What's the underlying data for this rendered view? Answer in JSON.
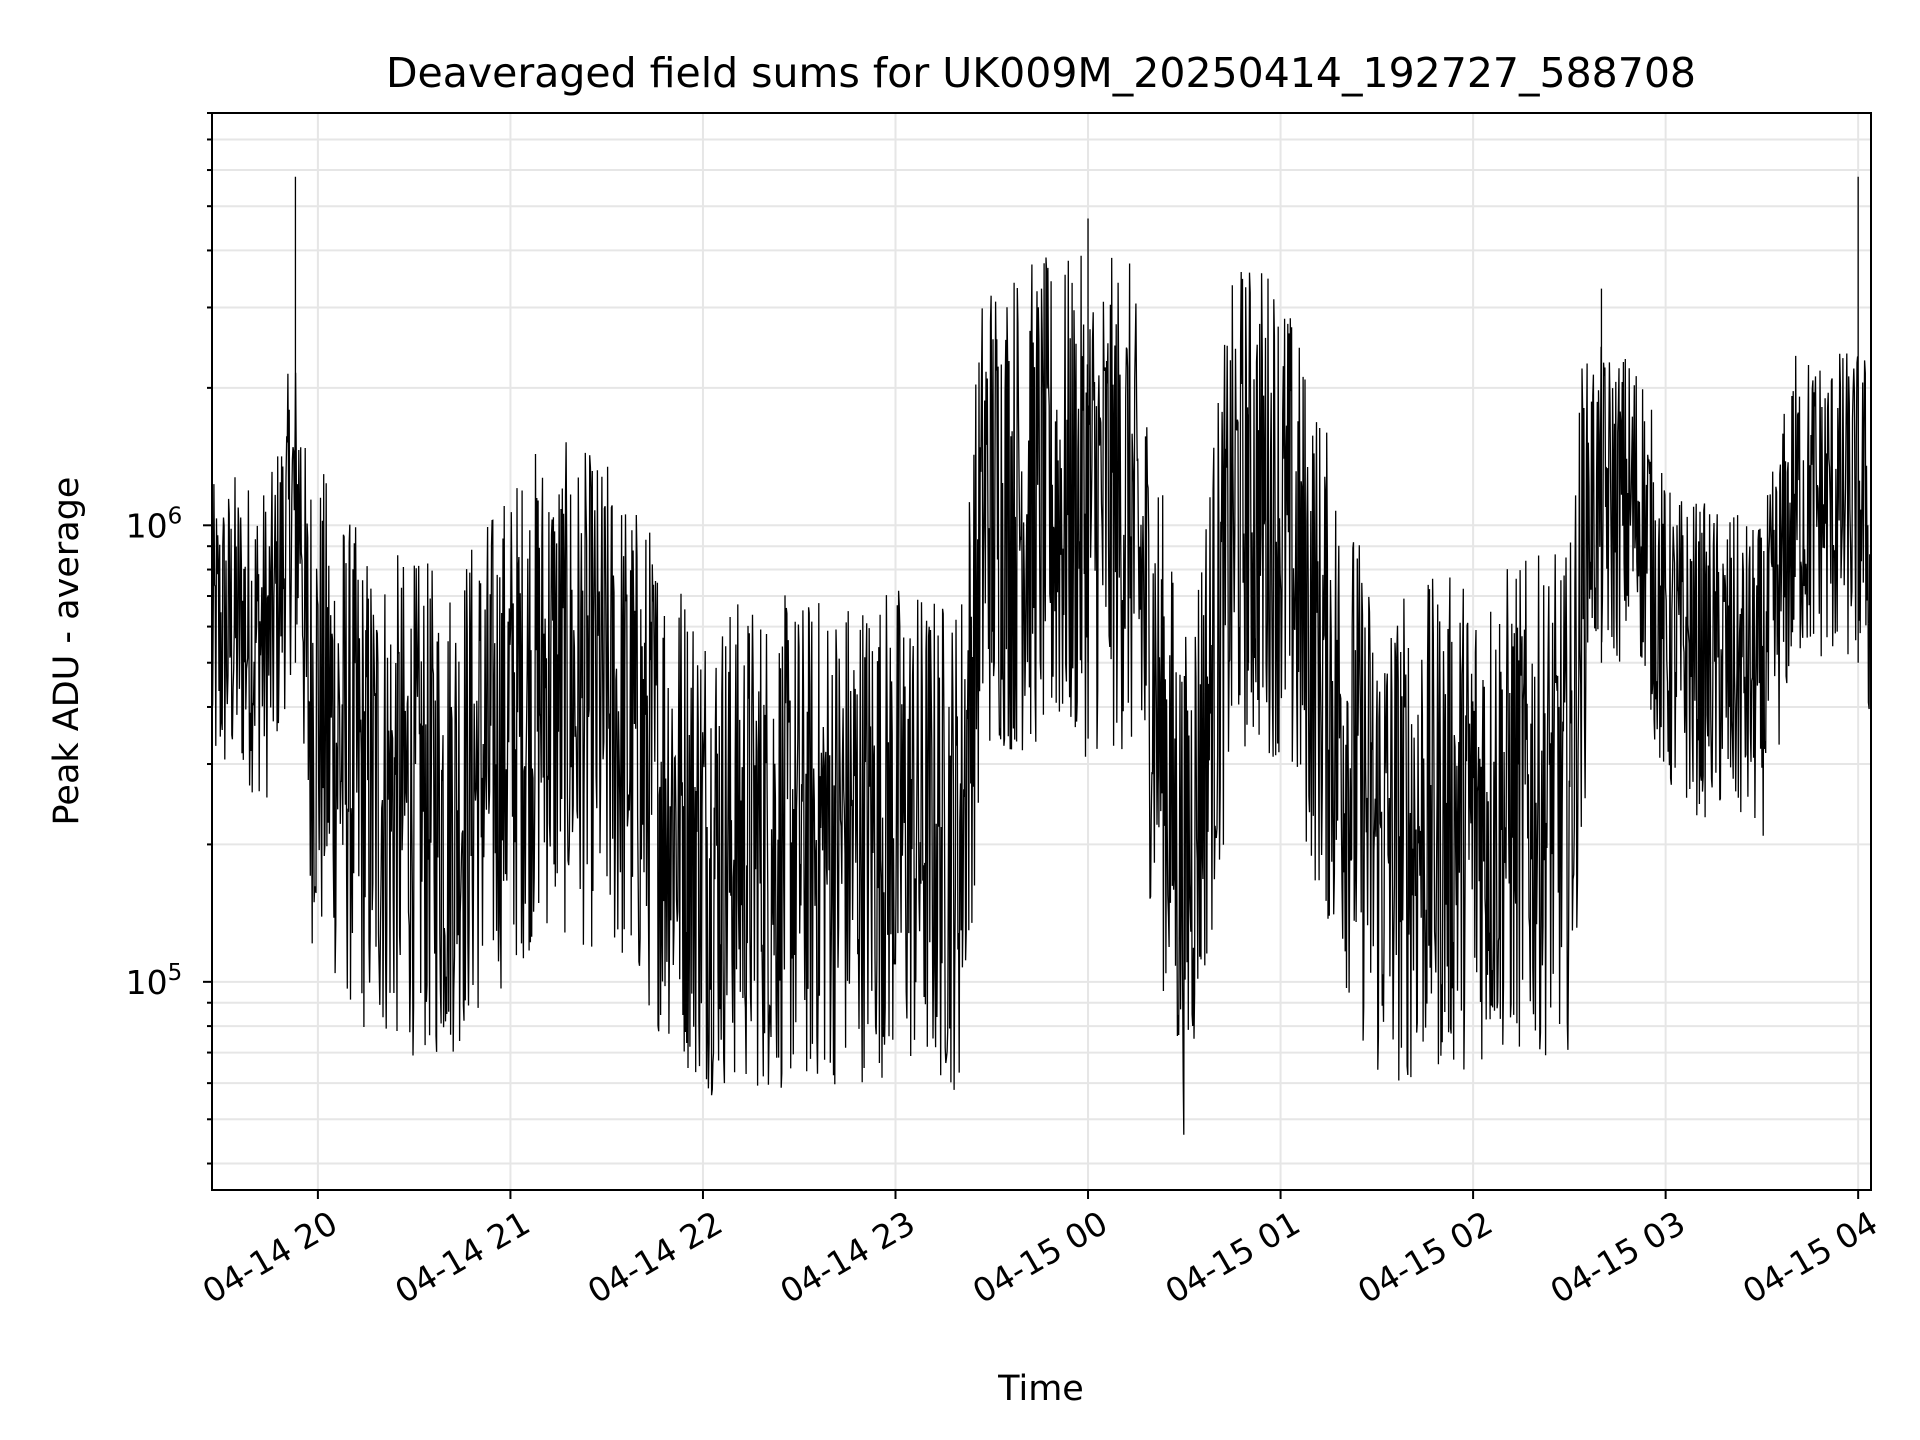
{
  "chart_data": {
    "type": "line",
    "title": "Deaveraged field sums for UK009M_20250414_192727_588708",
    "xlabel": "Time",
    "ylabel": "Peak ADU - average",
    "y_scale": "log",
    "x_range": [
      "2025-04-14 19:27",
      "2025-04-15 04:04"
    ],
    "ylim": [
      35000,
      8000000
    ],
    "grid": true,
    "line_color": "#000000",
    "x_tick_labels": [
      "04-14 20",
      "04-14 21",
      "04-14 22",
      "04-14 23",
      "04-15 00",
      "04-15 01",
      "04-15 02",
      "04-15 03",
      "04-15 04"
    ],
    "y_tick_labels": [
      {
        "base": "10",
        "exp": "5",
        "value": 100000
      },
      {
        "base": "10",
        "exp": "6",
        "value": 1000000
      }
    ],
    "series": [
      {
        "note_values": "approximate envelope/level readings along the series; individual frames are densely sampled noise around this level",
        "points": [
          {
            "t": "2025-04-14 19:27",
            "level": 550000
          },
          {
            "t": "2025-04-14 19:35",
            "level": 600000
          },
          {
            "t": "2025-04-14 19:45",
            "level": 550000
          },
          {
            "t": "2025-04-14 19:52",
            "level": 1100000
          },
          {
            "t": "2025-04-14 19:53",
            "level": 5800000
          },
          {
            "t": "2025-04-14 19:56",
            "level": 450000
          },
          {
            "t": "2025-04-14 20:15",
            "level": 260000
          },
          {
            "t": "2025-04-14 20:40",
            "level": 230000
          },
          {
            "t": "2025-04-14 21:10",
            "level": 450000
          },
          {
            "t": "2025-04-14 21:30",
            "level": 400000
          },
          {
            "t": "2025-04-14 22:00",
            "level": 200000
          },
          {
            "t": "2025-04-14 22:30",
            "level": 200000
          },
          {
            "t": "2025-04-14 23:00",
            "level": 220000
          },
          {
            "t": "2025-04-14 23:20",
            "level": 200000
          },
          {
            "t": "2025-04-14 23:30",
            "level": 1900000
          },
          {
            "t": "2025-04-15 00:00",
            "level": 4700000
          },
          {
            "t": "2025-04-15 00:30",
            "level": 160000
          },
          {
            "t": "2025-04-15 00:50",
            "level": 1750000
          },
          {
            "t": "2025-04-15 01:30",
            "level": 200000
          },
          {
            "t": "2025-04-15 02:00",
            "level": 230000
          },
          {
            "t": "2025-04-15 02:30",
            "level": 250000
          },
          {
            "t": "2025-04-15 02:40",
            "level": 3300000
          },
          {
            "t": "2025-04-15 03:00",
            "level": 550000
          },
          {
            "t": "2025-04-15 03:30",
            "level": 450000
          },
          {
            "t": "2025-04-15 04:00",
            "level": 5800000
          },
          {
            "t": "2025-04-15 04:04",
            "level": 500000
          }
        ]
      }
    ]
  }
}
